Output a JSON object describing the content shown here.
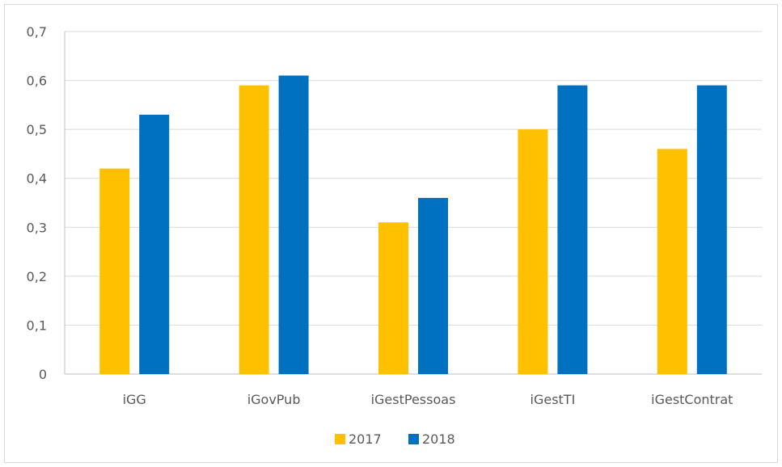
{
  "chart_data": {
    "type": "bar",
    "categories": [
      "iGG",
      "iGovPub",
      "iGestPessoas",
      "iGestTI",
      "iGestContrat"
    ],
    "series": [
      {
        "name": "2017",
        "values": [
          0.42,
          0.59,
          0.31,
          0.5,
          0.46
        ],
        "color": "#FFC000"
      },
      {
        "name": "2018",
        "values": [
          0.53,
          0.61,
          0.36,
          0.59,
          0.59
        ],
        "color": "#0070C0"
      }
    ],
    "title": "",
    "xlabel": "",
    "ylabel": "",
    "ylim": [
      0,
      0.7
    ],
    "yticks": [
      {
        "value": 0,
        "label": "0"
      },
      {
        "value": 0.1,
        "label": "0,1"
      },
      {
        "value": 0.2,
        "label": "0,2"
      },
      {
        "value": 0.3,
        "label": "0,3"
      },
      {
        "value": 0.4,
        "label": "0,4"
      },
      {
        "value": 0.5,
        "label": "0,5"
      },
      {
        "value": 0.6,
        "label": "0,6"
      },
      {
        "value": 0.7,
        "label": "0,7"
      }
    ],
    "grid": true,
    "legend_position": "bottom",
    "gridline_color": "#d9d9d9",
    "axis_color": "#bfbfbf"
  }
}
